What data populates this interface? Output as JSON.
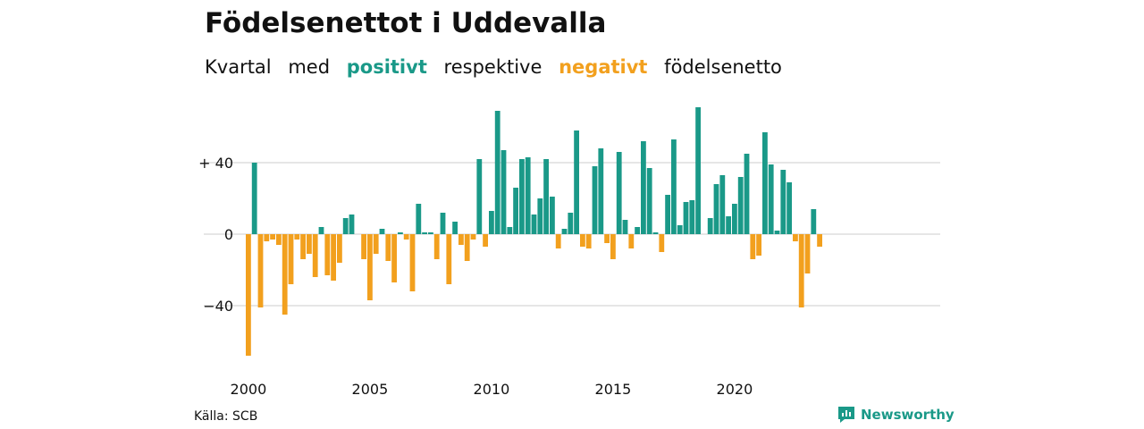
{
  "title": "Födelsenettot i Uddevalla",
  "subtitle": {
    "w1": "Kvartal",
    "w2": "med",
    "positive": "positivt",
    "w3": "respektive",
    "negative": "negativt",
    "w4": "födelsenetto"
  },
  "colors": {
    "positive": "#1a9988",
    "negative": "#f2a01e",
    "grid": "#dddddd",
    "text": "#111111"
  },
  "source": "Källa: SCB",
  "brand": {
    "name": "Newsworthy",
    "icon": "newsworthy-logo-icon"
  },
  "chart_data": {
    "type": "bar",
    "x_start": "2000-Q1",
    "x_ticks": [
      "2000",
      "2005",
      "2010",
      "2015",
      "2020"
    ],
    "y_ticks": [
      "+ 40",
      "0",
      "−40"
    ],
    "y_tick_values": [
      40,
      0,
      -40
    ],
    "ylim": [
      -70,
      72
    ],
    "grid": true,
    "values": [
      -68,
      40,
      -41,
      -4,
      -3,
      -6,
      -45,
      -28,
      -3,
      -14,
      -11,
      -24,
      4,
      -23,
      -26,
      -16,
      9,
      11,
      0,
      -14,
      -37,
      -11,
      3,
      -15,
      -27,
      1,
      -3,
      -32,
      17,
      1,
      1,
      -14,
      12,
      -28,
      7,
      -6,
      -15,
      -3,
      42,
      -7,
      13,
      69,
      47,
      4,
      26,
      42,
      43,
      11,
      20,
      42,
      21,
      -8,
      3,
      12,
      58,
      -7,
      -8,
      38,
      48,
      -5,
      -14,
      46,
      8,
      -8,
      4,
      52,
      37,
      1,
      -10,
      22,
      53,
      5,
      18,
      19,
      71,
      0,
      9,
      28,
      33,
      10,
      17,
      32,
      45,
      -14,
      -12,
      57,
      39,
      2,
      36,
      29,
      -4,
      -41,
      -22,
      14,
      -7
    ]
  }
}
